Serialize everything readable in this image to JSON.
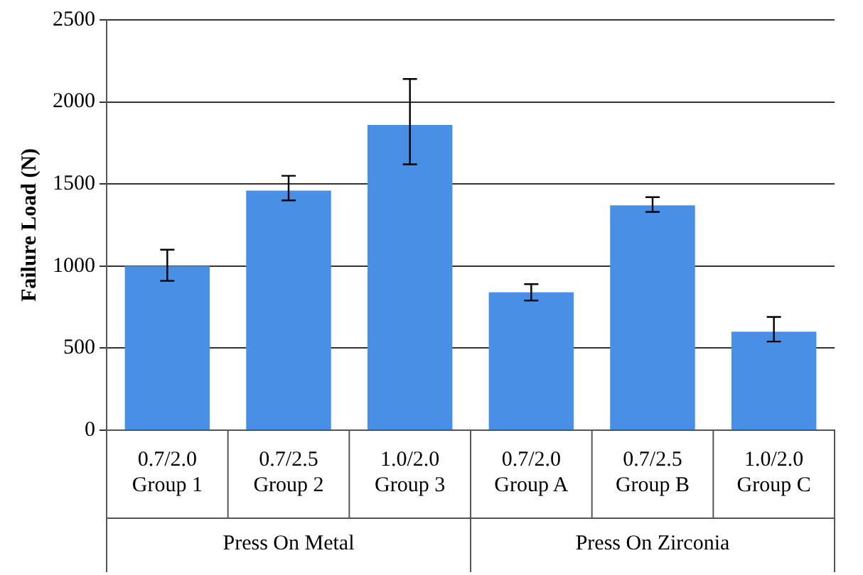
{
  "chart_data": {
    "type": "bar",
    "ylabel": "Failure Load (N)",
    "categories": [
      "0.7/2.0\nGroup 1",
      "0.7/2.5\nGroup 2",
      "1.0/2.0\nGroup 3",
      "0.7/2.0\nGroup A",
      "0.7/2.5\nGroup B",
      "1.0/2.0\nGroup C"
    ],
    "values": [
      1000,
      1460,
      1860,
      840,
      1370,
      600
    ],
    "errors": [
      [
        910,
        1100
      ],
      [
        1400,
        1550
      ],
      [
        1620,
        2140
      ],
      [
        790,
        890
      ],
      [
        1330,
        1420
      ],
      [
        540,
        690
      ]
    ],
    "color": "#4a8fe6",
    "ylim": [
      0,
      2500
    ],
    "yticks": [
      0,
      500,
      1000,
      1500,
      2000,
      2500
    ],
    "grid": "y",
    "annotations": [
      "Press On Metal",
      "Press On Zirconia"
    ]
  }
}
